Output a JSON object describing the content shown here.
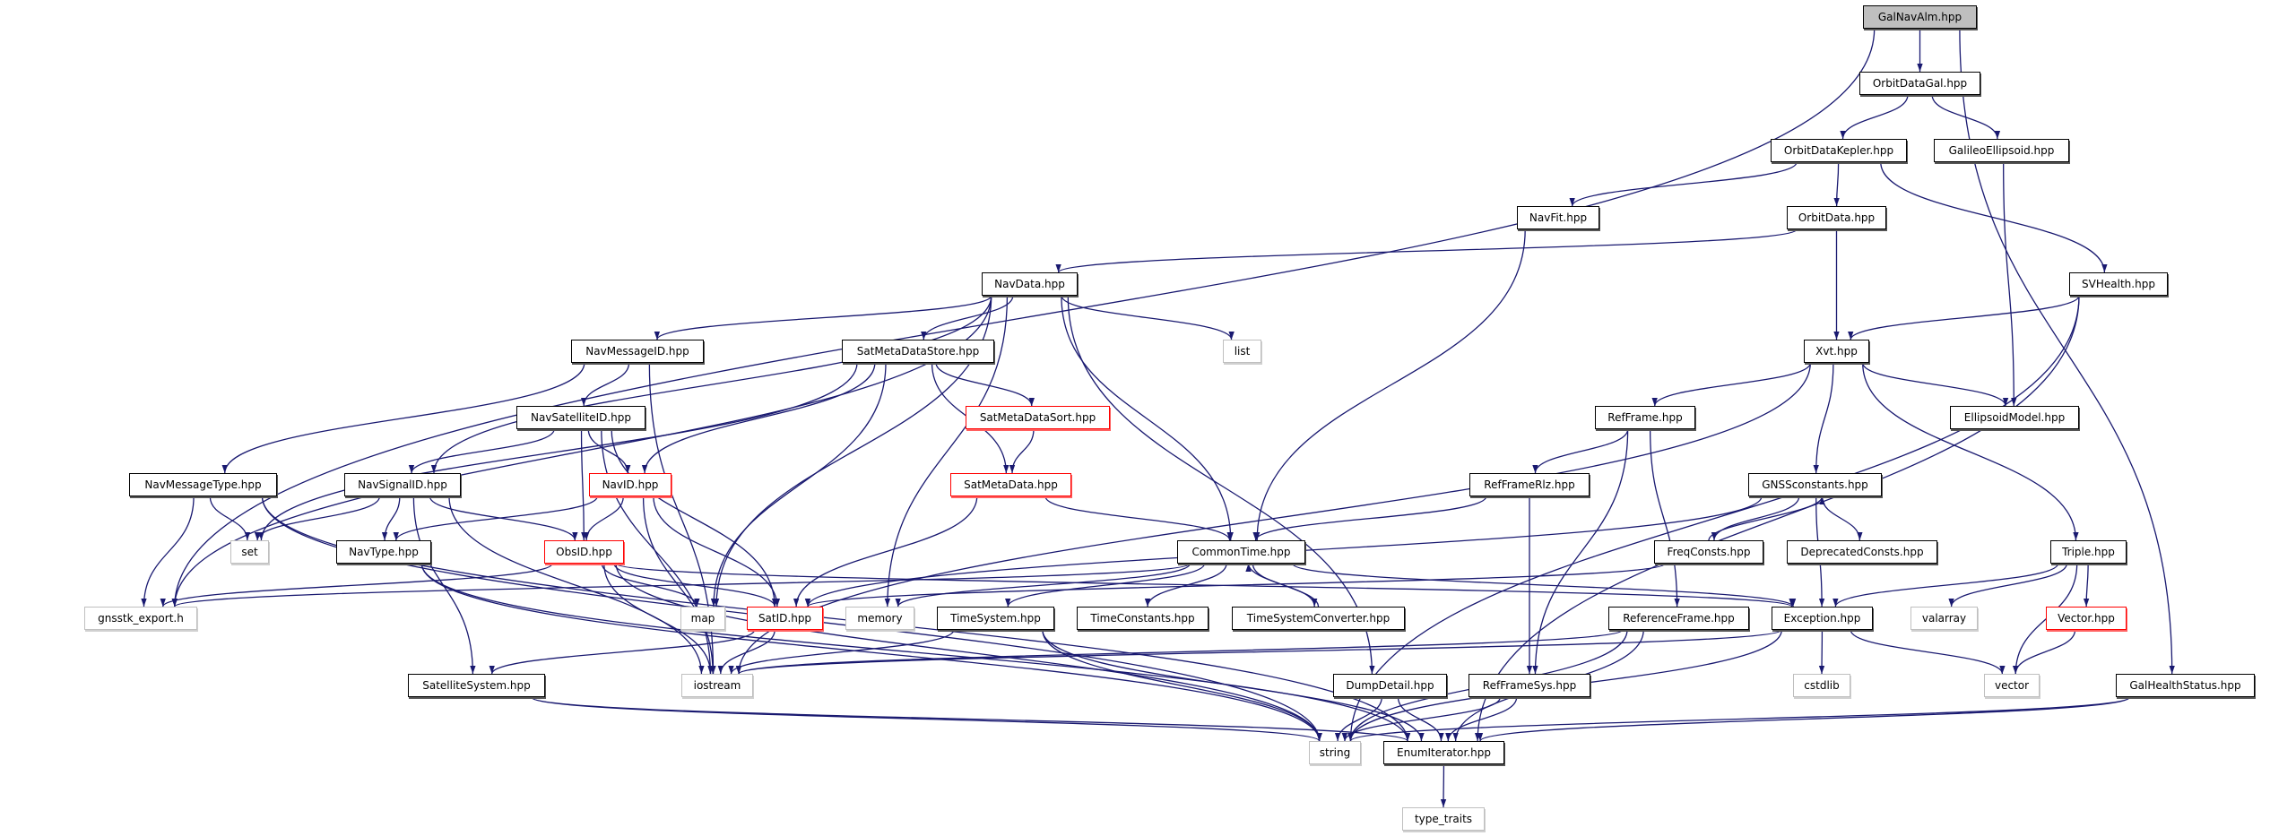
{
  "graph": {
    "edge_color": "#191970",
    "colors": {
      "normal_border": "#000000",
      "external_border": "#bfbfbf",
      "incomplete_border": "#ff0000",
      "root_fill": "#bfbfbf"
    },
    "nodes": [
      {
        "id": "GalNavAlm",
        "label": "GalNavAlm.hpp",
        "kind": "root"
      },
      {
        "id": "OrbitDataGal",
        "label": "OrbitDataGal.hpp",
        "kind": "normal"
      },
      {
        "id": "OrbitDataKepler",
        "label": "OrbitDataKepler.hpp",
        "kind": "normal"
      },
      {
        "id": "GalileoEllipsoid",
        "label": "GalileoEllipsoid.hpp",
        "kind": "normal"
      },
      {
        "id": "NavFit",
        "label": "NavFit.hpp",
        "kind": "normal"
      },
      {
        "id": "OrbitData",
        "label": "OrbitData.hpp",
        "kind": "normal"
      },
      {
        "id": "SVHealth",
        "label": "SVHealth.hpp",
        "kind": "normal"
      },
      {
        "id": "NavData",
        "label": "NavData.hpp",
        "kind": "normal"
      },
      {
        "id": "list",
        "label": "list",
        "kind": "ext"
      },
      {
        "id": "Xvt",
        "label": "Xvt.hpp",
        "kind": "normal"
      },
      {
        "id": "NavMessageID",
        "label": "NavMessageID.hpp",
        "kind": "normal"
      },
      {
        "id": "SatMetaDataStore",
        "label": "SatMetaDataStore.hpp",
        "kind": "normal"
      },
      {
        "id": "NavSatelliteID",
        "label": "NavSatelliteID.hpp",
        "kind": "normal"
      },
      {
        "id": "SatMetaDataSort",
        "label": "SatMetaDataSort.hpp",
        "kind": "red"
      },
      {
        "id": "RefFrame",
        "label": "RefFrame.hpp",
        "kind": "normal"
      },
      {
        "id": "EllipsoidModel",
        "label": "EllipsoidModel.hpp",
        "kind": "normal"
      },
      {
        "id": "NavMessageType",
        "label": "NavMessageType.hpp",
        "kind": "normal"
      },
      {
        "id": "NavSignalID",
        "label": "NavSignalID.hpp",
        "kind": "normal"
      },
      {
        "id": "NavID",
        "label": "NavID.hpp",
        "kind": "red"
      },
      {
        "id": "SatMetaData",
        "label": "SatMetaData.hpp",
        "kind": "red"
      },
      {
        "id": "RefFrameRlz",
        "label": "RefFrameRlz.hpp",
        "kind": "normal"
      },
      {
        "id": "GNSSconstants",
        "label": "GNSSconstants.hpp",
        "kind": "normal"
      },
      {
        "id": "set",
        "label": "set",
        "kind": "ext"
      },
      {
        "id": "NavType",
        "label": "NavType.hpp",
        "kind": "normal"
      },
      {
        "id": "ObsID",
        "label": "ObsID.hpp",
        "kind": "red"
      },
      {
        "id": "CommonTime",
        "label": "CommonTime.hpp",
        "kind": "normal"
      },
      {
        "id": "FreqConsts",
        "label": "FreqConsts.hpp",
        "kind": "normal"
      },
      {
        "id": "DeprecatedConsts",
        "label": "DeprecatedConsts.hpp",
        "kind": "normal"
      },
      {
        "id": "Triple",
        "label": "Triple.hpp",
        "kind": "normal"
      },
      {
        "id": "gnsstk_export",
        "label": "gnsstk_export.h",
        "kind": "ext"
      },
      {
        "id": "map",
        "label": "map",
        "kind": "ext"
      },
      {
        "id": "SatID",
        "label": "SatID.hpp",
        "kind": "red"
      },
      {
        "id": "memory",
        "label": "memory",
        "kind": "ext"
      },
      {
        "id": "TimeSystem",
        "label": "TimeSystem.hpp",
        "kind": "normal"
      },
      {
        "id": "TimeConstants",
        "label": "TimeConstants.hpp",
        "kind": "normal"
      },
      {
        "id": "TimeSystemConverter",
        "label": "TimeSystemConverter.hpp",
        "kind": "normal"
      },
      {
        "id": "ReferenceFrame",
        "label": "ReferenceFrame.hpp",
        "kind": "normal"
      },
      {
        "id": "Exception",
        "label": "Exception.hpp",
        "kind": "normal"
      },
      {
        "id": "valarray",
        "label": "valarray",
        "kind": "ext"
      },
      {
        "id": "Vector",
        "label": "Vector.hpp",
        "kind": "red"
      },
      {
        "id": "SatelliteSystem",
        "label": "SatelliteSystem.hpp",
        "kind": "normal"
      },
      {
        "id": "iostream",
        "label": "iostream",
        "kind": "ext"
      },
      {
        "id": "DumpDetail",
        "label": "DumpDetail.hpp",
        "kind": "normal"
      },
      {
        "id": "RefFrameSys",
        "label": "RefFrameSys.hpp",
        "kind": "normal"
      },
      {
        "id": "cstdlib",
        "label": "cstdlib",
        "kind": "ext"
      },
      {
        "id": "vector",
        "label": "vector",
        "kind": "ext"
      },
      {
        "id": "GalHealthStatus",
        "label": "GalHealthStatus.hpp",
        "kind": "normal"
      },
      {
        "id": "string",
        "label": "string",
        "kind": "ext"
      },
      {
        "id": "EnumIterator",
        "label": "EnumIterator.hpp",
        "kind": "normal"
      },
      {
        "id": "type_traits",
        "label": "type_traits",
        "kind": "ext"
      }
    ],
    "edges": [
      [
        "GalNavAlm",
        "OrbitDataGal"
      ],
      [
        "GalNavAlm",
        "gnsstk_export"
      ],
      [
        "GalNavAlm",
        "GalHealthStatus"
      ],
      [
        "OrbitDataGal",
        "OrbitDataKepler"
      ],
      [
        "OrbitDataGal",
        "GalileoEllipsoid"
      ],
      [
        "OrbitDataKepler",
        "NavFit"
      ],
      [
        "OrbitDataKepler",
        "OrbitData"
      ],
      [
        "OrbitDataKepler",
        "SVHealth"
      ],
      [
        "GalileoEllipsoid",
        "EllipsoidModel"
      ],
      [
        "NavFit",
        "CommonTime"
      ],
      [
        "OrbitData",
        "NavData"
      ],
      [
        "OrbitData",
        "Xvt"
      ],
      [
        "SVHealth",
        "Xvt"
      ],
      [
        "SVHealth",
        "string"
      ],
      [
        "SVHealth",
        "EnumIterator"
      ],
      [
        "NavData",
        "NavMessageID"
      ],
      [
        "NavData",
        "SatMetaDataStore"
      ],
      [
        "NavData",
        "NavSignalID"
      ],
      [
        "NavData",
        "gnsstk_export"
      ],
      [
        "NavData",
        "map"
      ],
      [
        "NavData",
        "memory"
      ],
      [
        "NavData",
        "list"
      ],
      [
        "NavData",
        "CommonTime"
      ],
      [
        "NavData",
        "DumpDetail"
      ],
      [
        "NavMessageID",
        "NavMessageType"
      ],
      [
        "NavMessageID",
        "NavSatelliteID"
      ],
      [
        "NavMessageID",
        "iostream"
      ],
      [
        "SatMetaDataStore",
        "set"
      ],
      [
        "SatMetaDataStore",
        "NavID"
      ],
      [
        "SatMetaDataStore",
        "map"
      ],
      [
        "SatMetaDataStore",
        "SatMetaDataSort"
      ],
      [
        "SatMetaDataStore",
        "SatMetaData"
      ],
      [
        "SatMetaDataSort",
        "SatMetaData"
      ],
      [
        "NavSatelliteID",
        "NavSignalID"
      ],
      [
        "NavSatelliteID",
        "NavID"
      ],
      [
        "NavSatelliteID",
        "ObsID"
      ],
      [
        "NavSatelliteID",
        "SatID"
      ],
      [
        "NavSatelliteID",
        "iostream"
      ],
      [
        "NavMessageType",
        "set"
      ],
      [
        "NavMessageType",
        "gnsstk_export"
      ],
      [
        "NavMessageType",
        "string"
      ],
      [
        "NavMessageType",
        "EnumIterator"
      ],
      [
        "NavSignalID",
        "set"
      ],
      [
        "NavSignalID",
        "NavType"
      ],
      [
        "NavSignalID",
        "ObsID"
      ],
      [
        "NavSignalID",
        "SatelliteSystem"
      ],
      [
        "NavSignalID",
        "iostream"
      ],
      [
        "NavID",
        "NavType"
      ],
      [
        "NavID",
        "ObsID"
      ],
      [
        "NavID",
        "SatID"
      ],
      [
        "NavID",
        "iostream"
      ],
      [
        "SatMetaData",
        "SatID"
      ],
      [
        "SatMetaData",
        "CommonTime"
      ],
      [
        "NavType",
        "string"
      ],
      [
        "NavType",
        "EnumIterator"
      ],
      [
        "ObsID",
        "gnsstk_export"
      ],
      [
        "ObsID",
        "map"
      ],
      [
        "ObsID",
        "SatID"
      ],
      [
        "ObsID",
        "iostream"
      ],
      [
        "ObsID",
        "string"
      ],
      [
        "ObsID",
        "Exception"
      ],
      [
        "SatID",
        "SatelliteSystem"
      ],
      [
        "SatID",
        "iostream"
      ],
      [
        "CommonTime",
        "gnsstk_export"
      ],
      [
        "CommonTime",
        "memory"
      ],
      [
        "CommonTime",
        "TimeSystem"
      ],
      [
        "CommonTime",
        "TimeConstants"
      ],
      [
        "CommonTime",
        "TimeSystemConverter"
      ],
      [
        "CommonTime",
        "Exception"
      ],
      [
        "FreqConsts",
        "SatID"
      ],
      [
        "FreqConsts",
        "GNSSconstants"
      ],
      [
        "GNSSconstants",
        "FreqConsts"
      ],
      [
        "GNSSconstants",
        "DeprecatedConsts"
      ],
      [
        "GNSSconstants",
        "Exception"
      ],
      [
        "GNSSconstants",
        "SatID"
      ],
      [
        "TimeSystemConverter",
        "CommonTime"
      ],
      [
        "TimeSystem",
        "iostream"
      ],
      [
        "TimeSystem",
        "string"
      ],
      [
        "TimeSystem",
        "EnumIterator"
      ],
      [
        "Xvt",
        "RefFrame"
      ],
      [
        "Xvt",
        "GNSSconstants"
      ],
      [
        "Xvt",
        "Triple"
      ],
      [
        "Xvt",
        "EllipsoidModel"
      ],
      [
        "Xvt",
        "iostream"
      ],
      [
        "RefFrame",
        "RefFrameRlz"
      ],
      [
        "RefFrame",
        "RefFrameSys"
      ],
      [
        "RefFrame",
        "ReferenceFrame"
      ],
      [
        "RefFrameRlz",
        "CommonTime"
      ],
      [
        "RefFrameRlz",
        "RefFrameSys"
      ],
      [
        "ReferenceFrame",
        "iostream"
      ],
      [
        "ReferenceFrame",
        "string"
      ],
      [
        "ReferenceFrame",
        "EnumIterator"
      ],
      [
        "Exception",
        "iostream"
      ],
      [
        "Exception",
        "cstdlib"
      ],
      [
        "Exception",
        "vector"
      ],
      [
        "Exception",
        "string"
      ],
      [
        "Triple",
        "Exception"
      ],
      [
        "Triple",
        "valarray"
      ],
      [
        "Triple",
        "Vector"
      ],
      [
        "Triple",
        "vector"
      ],
      [
        "Vector",
        "vector"
      ],
      [
        "DumpDetail",
        "string"
      ],
      [
        "DumpDetail",
        "EnumIterator"
      ],
      [
        "RefFrameSys",
        "string"
      ],
      [
        "RefFrameSys",
        "EnumIterator"
      ],
      [
        "GalHealthStatus",
        "string"
      ],
      [
        "GalHealthStatus",
        "EnumIterator"
      ],
      [
        "SatelliteSystem",
        "string"
      ],
      [
        "SatelliteSystem",
        "EnumIterator"
      ],
      [
        "EnumIterator",
        "type_traits"
      ]
    ]
  }
}
